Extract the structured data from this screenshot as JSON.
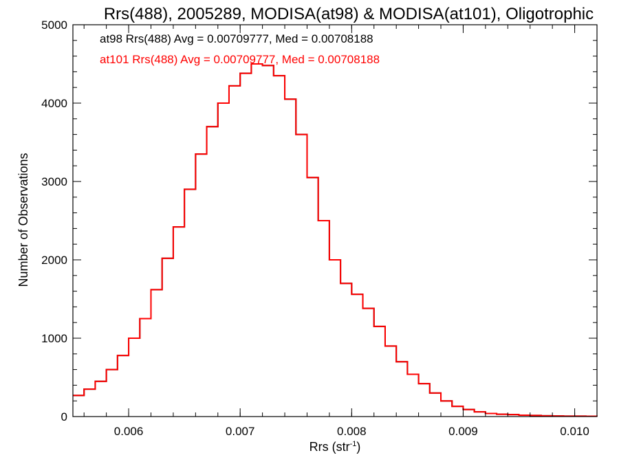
{
  "chart_data": {
    "type": "line",
    "title": "Rrs(488), 2005289, MODISA(at98) & MODISA(at101), Oligotrophic",
    "xlabel": "Rrs (str",
    "xlabel_sup": "-1",
    "xlabel_end": ")",
    "ylabel": "Number of Observations",
    "xlim": [
      0.0055,
      0.0102
    ],
    "ylim": [
      0,
      5000
    ],
    "xticks": [
      0.006,
      0.007,
      0.008,
      0.009,
      0.01
    ],
    "xtick_labels": [
      "0.006",
      "0.007",
      "0.008",
      "0.009",
      "0.010"
    ],
    "yticks": [
      0,
      1000,
      2000,
      3000,
      4000,
      5000
    ],
    "ytick_labels": [
      "0",
      "1000",
      "2000",
      "3000",
      "4000",
      "5000"
    ],
    "x_minor_step": 0.0002,
    "y_minor_step": 200,
    "step_style": "histogram",
    "grid": false,
    "annotations": [
      {
        "text": "at98 Rrs(488) Avg = 0.00709777, Med = 0.00708188",
        "color": "#000000"
      },
      {
        "text": "at101 Rrs(488) Avg = 0.00709777, Med = 0.00708188",
        "color": "#ff0000"
      }
    ],
    "series": [
      {
        "name": "at98",
        "color": "#000000",
        "x": [
          0.0055,
          0.0056,
          0.0057,
          0.0058,
          0.0059,
          0.006,
          0.0061,
          0.0062,
          0.0063,
          0.0064,
          0.0065,
          0.0066,
          0.0067,
          0.0068,
          0.0069,
          0.007,
          0.0071,
          0.0072,
          0.0073,
          0.0074,
          0.0075,
          0.0076,
          0.0077,
          0.0078,
          0.0079,
          0.008,
          0.0081,
          0.0082,
          0.0083,
          0.0084,
          0.0085,
          0.0086,
          0.0087,
          0.0088,
          0.0089,
          0.009,
          0.0091,
          0.0092,
          0.0093,
          0.0094,
          0.0095,
          0.0096,
          0.0097,
          0.0098,
          0.0099,
          0.01,
          0.0101,
          0.0102
        ],
        "y": [
          270,
          350,
          450,
          600,
          780,
          1000,
          1250,
          1620,
          2020,
          2420,
          2900,
          3350,
          3700,
          4000,
          4220,
          4380,
          4500,
          4480,
          4350,
          4050,
          3600,
          3050,
          2500,
          2000,
          1700,
          1560,
          1380,
          1150,
          900,
          700,
          540,
          420,
          300,
          200,
          130,
          90,
          60,
          40,
          30,
          25,
          18,
          14,
          10,
          8,
          6,
          5,
          4,
          3
        ]
      },
      {
        "name": "at101",
        "color": "#ff0000",
        "x": [
          0.0055,
          0.0056,
          0.0057,
          0.0058,
          0.0059,
          0.006,
          0.0061,
          0.0062,
          0.0063,
          0.0064,
          0.0065,
          0.0066,
          0.0067,
          0.0068,
          0.0069,
          0.007,
          0.0071,
          0.0072,
          0.0073,
          0.0074,
          0.0075,
          0.0076,
          0.0077,
          0.0078,
          0.0079,
          0.008,
          0.0081,
          0.0082,
          0.0083,
          0.0084,
          0.0085,
          0.0086,
          0.0087,
          0.0088,
          0.0089,
          0.009,
          0.0091,
          0.0092,
          0.0093,
          0.0094,
          0.0095,
          0.0096,
          0.0097,
          0.0098,
          0.0099,
          0.01,
          0.0101,
          0.0102
        ],
        "y": [
          270,
          350,
          450,
          600,
          780,
          1000,
          1250,
          1620,
          2020,
          2420,
          2900,
          3350,
          3700,
          4000,
          4220,
          4380,
          4500,
          4480,
          4350,
          4050,
          3600,
          3050,
          2500,
          2000,
          1700,
          1560,
          1380,
          1150,
          900,
          700,
          540,
          420,
          300,
          200,
          130,
          90,
          60,
          40,
          30,
          25,
          18,
          14,
          10,
          8,
          6,
          5,
          4,
          3
        ]
      }
    ]
  }
}
